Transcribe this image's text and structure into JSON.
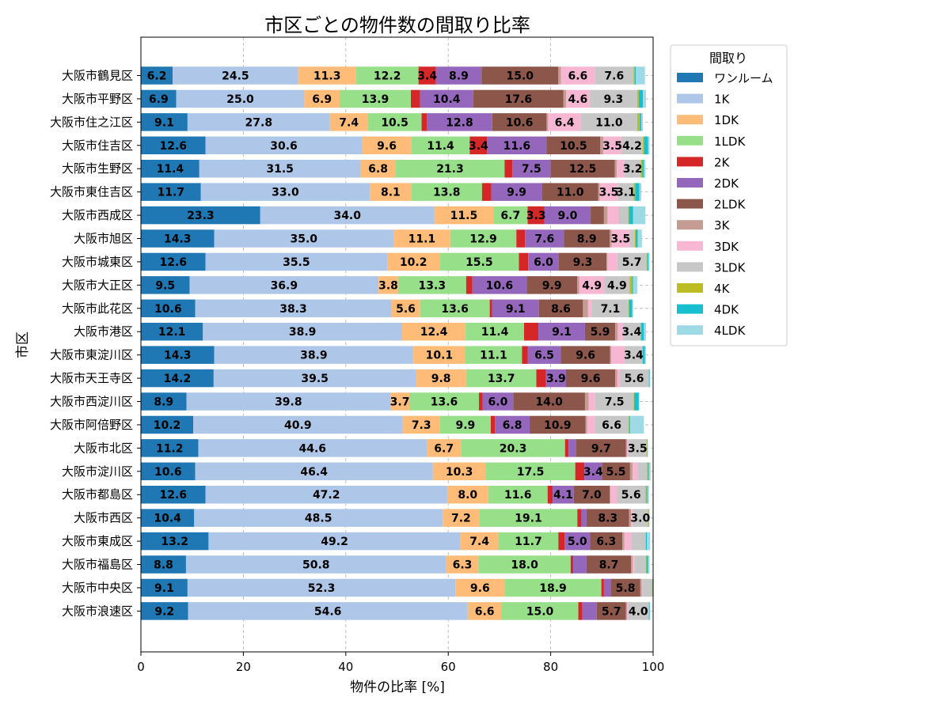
{
  "chart_data": {
    "type": "bar",
    "orientation": "horizontal",
    "stacked": true,
    "title": "市区ごとの物件数の間取り比率",
    "xlabel": "物件の比率 [%]",
    "ylabel": "市区",
    "xlim": [
      0,
      100
    ],
    "xticks": [
      "0",
      "20",
      "40",
      "60",
      "80",
      "100"
    ],
    "grid": true,
    "legend": {
      "title": "間取り",
      "position": "outside-upper-right"
    },
    "categories": [
      "大阪市鶴見区",
      "大阪市平野区",
      "大阪市住之江区",
      "大阪市住吉区",
      "大阪市生野区",
      "大阪市東住吉区",
      "大阪市西成区",
      "大阪市旭区",
      "大阪市城東区",
      "大阪市大正区",
      "大阪市此花区",
      "大阪市港区",
      "大阪市東淀川区",
      "大阪市天王寺区",
      "大阪市西淀川区",
      "大阪市阿倍野区",
      "大阪市北区",
      "大阪市淀川区",
      "大阪市都島区",
      "大阪市西区",
      "大阪市東成区",
      "大阪市福島区",
      "大阪市中央区",
      "大阪市浪速区"
    ],
    "series": [
      {
        "name": "ワンルーム",
        "color": "#1f77b4",
        "values": [
          6.2,
          6.9,
          9.1,
          12.6,
          11.4,
          11.7,
          23.3,
          14.3,
          12.6,
          9.5,
          10.6,
          12.1,
          14.3,
          14.2,
          8.9,
          10.2,
          11.2,
          10.6,
          12.6,
          10.4,
          13.2,
          8.8,
          9.1,
          9.2
        ]
      },
      {
        "name": "1K",
        "color": "#aec7e8",
        "values": [
          24.5,
          25.0,
          27.8,
          30.6,
          31.5,
          33.0,
          34.0,
          35.0,
          35.5,
          36.9,
          38.3,
          38.9,
          38.9,
          39.5,
          39.8,
          40.9,
          44.6,
          46.4,
          47.2,
          48.5,
          49.2,
          50.8,
          52.3,
          54.6
        ]
      },
      {
        "name": "1DK",
        "color": "#ffbb78",
        "values": [
          11.3,
          6.9,
          7.4,
          9.6,
          6.8,
          8.1,
          11.5,
          11.1,
          10.2,
          3.8,
          5.6,
          12.4,
          10.1,
          9.8,
          3.7,
          7.3,
          6.7,
          10.3,
          8.0,
          7.2,
          7.4,
          6.3,
          9.6,
          6.6
        ]
      },
      {
        "name": "1LDK",
        "color": "#98df8a",
        "values": [
          12.2,
          13.9,
          10.5,
          11.4,
          21.3,
          13.8,
          6.7,
          12.9,
          15.5,
          13.3,
          13.6,
          11.4,
          11.1,
          13.7,
          13.6,
          9.9,
          20.3,
          17.5,
          11.6,
          19.1,
          11.7,
          18.0,
          18.9,
          15.0
        ]
      },
      {
        "name": "2K",
        "color": "#d62728",
        "values": [
          3.4,
          1.8,
          1.0,
          3.4,
          1.5,
          1.8,
          3.3,
          1.7,
          1.8,
          1.2,
          0.5,
          2.8,
          1.1,
          1.9,
          0.7,
          0.8,
          0.7,
          1.8,
          1.0,
          0.8,
          1.2,
          0.5,
          0.5,
          0.8
        ]
      },
      {
        "name": "2DK",
        "color": "#9467bd",
        "values": [
          8.9,
          10.4,
          12.8,
          11.6,
          7.5,
          9.9,
          9.0,
          7.6,
          6.0,
          10.6,
          9.1,
          9.1,
          6.5,
          3.9,
          6.0,
          6.8,
          1.5,
          3.4,
          4.1,
          1.0,
          5.0,
          2.6,
          1.3,
          2.8
        ]
      },
      {
        "name": "2LDK",
        "color": "#8c564b",
        "values": [
          15.0,
          17.6,
          10.6,
          10.5,
          12.5,
          11.0,
          2.6,
          8.9,
          9.3,
          9.9,
          8.6,
          5.9,
          9.6,
          9.6,
          14.0,
          10.9,
          9.7,
          5.5,
          7.0,
          8.3,
          6.3,
          8.7,
          5.8,
          5.7
        ]
      },
      {
        "name": "3K",
        "color": "#c49c94",
        "values": [
          0.5,
          0.5,
          0.3,
          0.6,
          0.4,
          0.3,
          0.7,
          0.4,
          0.2,
          0.4,
          1.0,
          0.5,
          0.2,
          0.4,
          0.7,
          0.3,
          0.2,
          0.5,
          0.2,
          0.4,
          0.4,
          0.3,
          0.3,
          0.2
        ]
      },
      {
        "name": "3DK",
        "color": "#f7b6d2",
        "values": [
          6.6,
          4.6,
          6.4,
          3.5,
          1.5,
          3.5,
          2.1,
          3.5,
          1.9,
          4.9,
          0.8,
          1.0,
          2.7,
          0.5,
          1.3,
          1.5,
          0.3,
          1.0,
          1.2,
          0.3,
          1.3,
          0.4,
          0.2,
          0.2
        ]
      },
      {
        "name": "3LDK",
        "color": "#c7c7c7",
        "values": [
          7.6,
          9.3,
          11.0,
          4.2,
          3.2,
          3.1,
          1.9,
          1.0,
          5.7,
          4.9,
          7.1,
          3.4,
          3.4,
          5.6,
          7.5,
          6.6,
          3.5,
          1.8,
          5.6,
          3.0,
          2.8,
          2.2,
          1.8,
          4.0
        ]
      },
      {
        "name": "4K",
        "color": "#bcbd22",
        "values": [
          0.2,
          0.3,
          0.5,
          0.2,
          0.3,
          0.3,
          0.2,
          0.2,
          0.2,
          0.5,
          0.1,
          0.2,
          0.1,
          0.1,
          0.1,
          0.1,
          0.1,
          0.2,
          0.2,
          0.1,
          0.1,
          0.1,
          0.1,
          0.1
        ]
      },
      {
        "name": "4DK",
        "color": "#17becf",
        "values": [
          0.2,
          0.8,
          0.3,
          0.8,
          0.3,
          0.8,
          0.8,
          0.4,
          0.2,
          0.2,
          0.6,
          0.5,
          0.4,
          0.1,
          0.9,
          0.2,
          0.1,
          0.2,
          0.2,
          0.1,
          0.2,
          0.3,
          0.1,
          0.1
        ]
      },
      {
        "name": "4LDK",
        "color": "#9edae5",
        "values": [
          1.8,
          0.6,
          0.3,
          0.3,
          0.3,
          0.4,
          2.4,
          0.8,
          0.2,
          0.8,
          0.2,
          0.4,
          0.2,
          0.1,
          0.1,
          2.7,
          0.1,
          0.3,
          0.3,
          0.1,
          0.6,
          0.3,
          0.1,
          0.1
        ]
      }
    ]
  }
}
